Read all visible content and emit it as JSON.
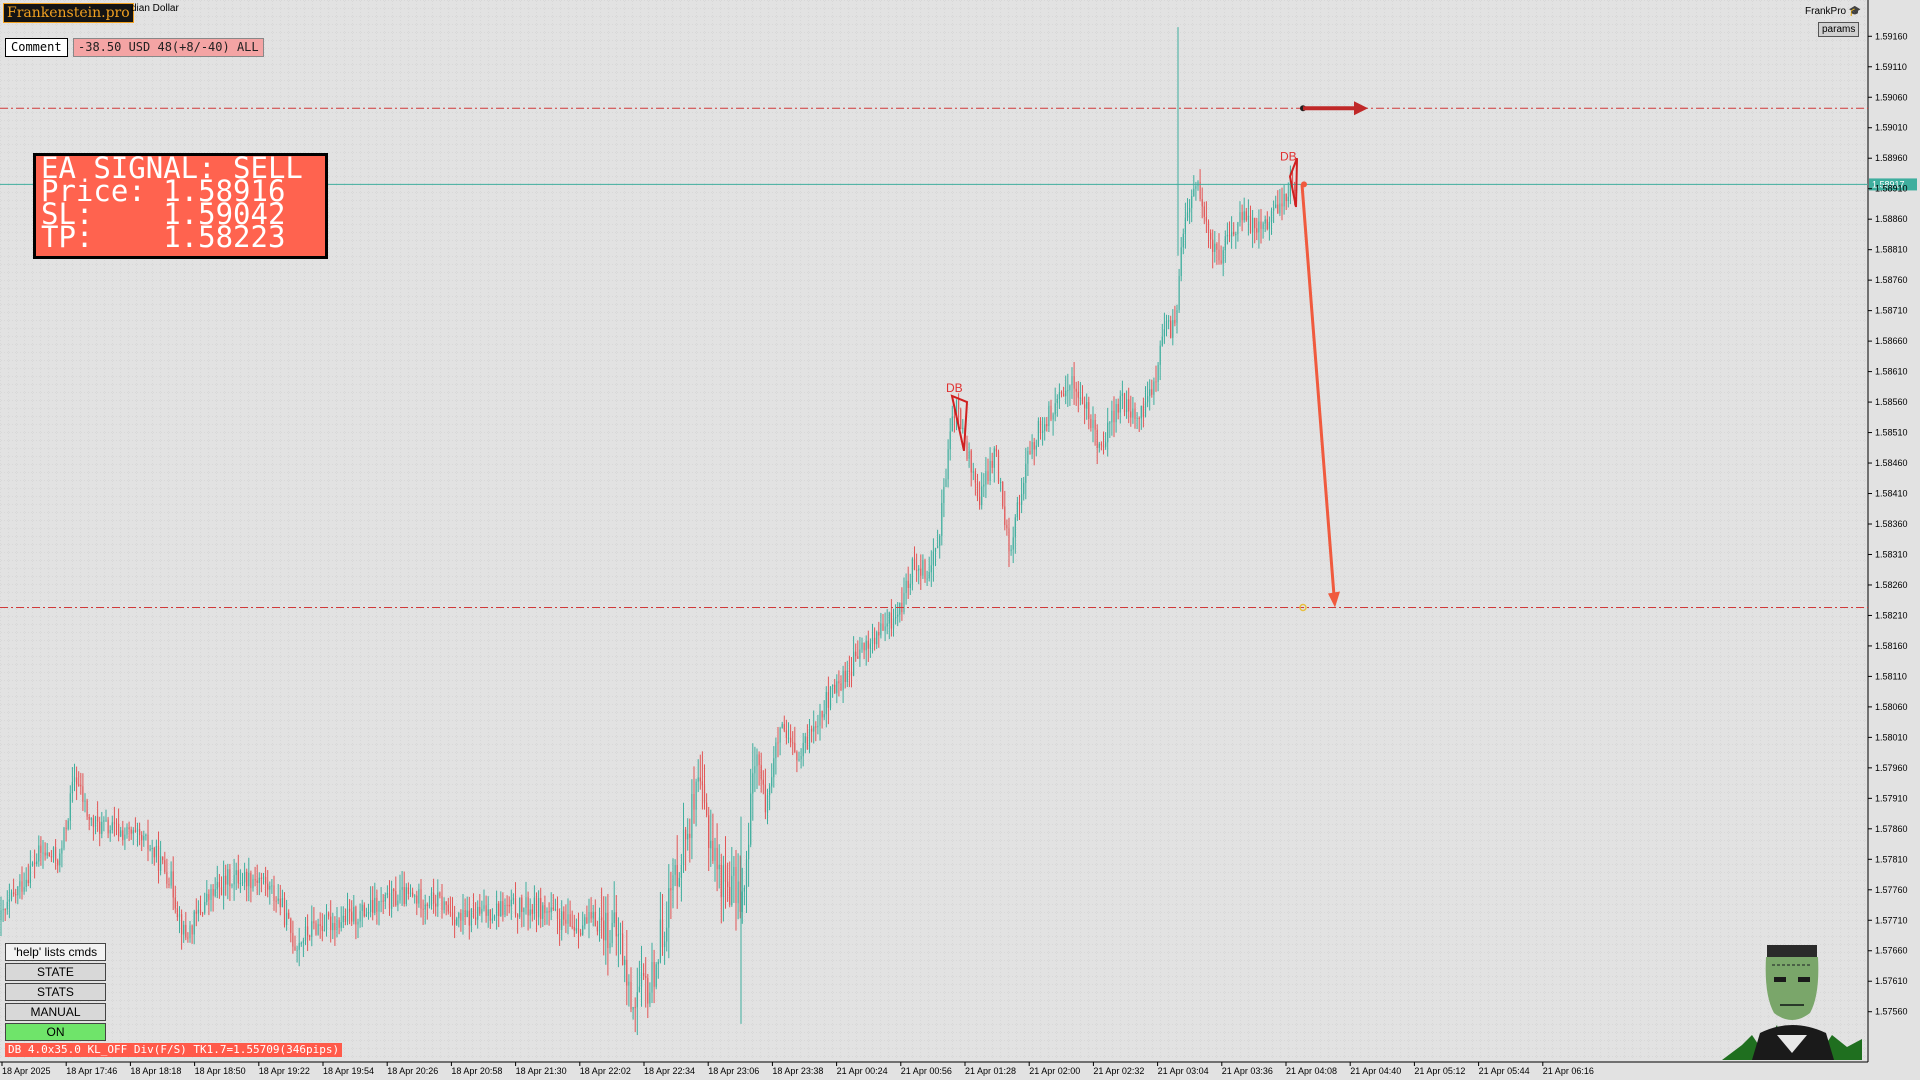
{
  "header": {
    "brand": "Frankenstein.pro",
    "symbol_fragment": "dian Dollar",
    "frankpro_label": "FrankPro",
    "params_button": "params"
  },
  "comment_panel": {
    "button_label": "Comment",
    "pnl_text": "-38.50 USD 48(+8/-40) ALL"
  },
  "signal_box": {
    "line1": "EA SIGNAL: SELL",
    "line2": "Price: 1.58916",
    "line3": "SL:    1.59042",
    "line4": "TP:    1.58223",
    "bg_color": "#ff634f"
  },
  "command_panel": {
    "help": "'help' lists cmds",
    "state": "STATE",
    "stats": "STATS",
    "manual": "MANUAL",
    "on": "ON",
    "on_color": "#6fe46a"
  },
  "status_bar": {
    "db_text": "DB 4.0x35.0 KL_OFF Div(F/S) TK1.7=1.55709(346pips)"
  },
  "chart_data": {
    "type": "candlestick",
    "ylim": [
      1.5753,
      1.5919
    ],
    "y_ticks": [
      "1.59160",
      "1.59110",
      "1.59060",
      "1.59010",
      "1.58960",
      "1.58910",
      "1.58860",
      "1.58810",
      "1.58760",
      "1.58710",
      "1.58660",
      "1.58610",
      "1.58560",
      "1.58510",
      "1.58460",
      "1.58410",
      "1.58360",
      "1.58310",
      "1.58260",
      "1.58210",
      "1.58160",
      "1.58110",
      "1.58060",
      "1.58010",
      "1.57960",
      "1.57910",
      "1.57860",
      "1.57810",
      "1.57760",
      "1.57710",
      "1.57660",
      "1.57610",
      "1.57560"
    ],
    "x_ticks": [
      "18 Apr 2025",
      "18 Apr 17:46",
      "18 Apr 18:18",
      "18 Apr 18:50",
      "18 Apr 19:22",
      "18 Apr 19:54",
      "18 Apr 20:26",
      "18 Apr 20:58",
      "18 Apr 21:30",
      "18 Apr 22:02",
      "18 Apr 22:34",
      "18 Apr 23:06",
      "18 Apr 23:38",
      "21 Apr 00:24",
      "21 Apr 00:56",
      "21 Apr 01:28",
      "21 Apr 02:00",
      "21 Apr 02:32",
      "21 Apr 03:04",
      "21 Apr 03:36",
      "21 Apr 04:08",
      "21 Apr 04:40",
      "21 Apr 05:12",
      "21 Apr 05:44",
      "21 Apr 06:16"
    ],
    "current_price": 1.58917,
    "current_price_label": "1.58917",
    "sl_level": 1.59042,
    "tp_level": 1.58223,
    "pattern_labels": [
      {
        "text": "DB",
        "x": 954,
        "price": 1.5857
      },
      {
        "text": "DB",
        "x": 1288,
        "price": 1.5895
      }
    ],
    "path": [
      [
        0,
        1.5771
      ],
      [
        40,
        1.5782
      ],
      [
        60,
        1.5781
      ],
      [
        75,
        1.5795
      ],
      [
        90,
        1.5787
      ],
      [
        130,
        1.5785
      ],
      [
        150,
        1.5783
      ],
      [
        170,
        1.5778
      ],
      [
        185,
        1.5768
      ],
      [
        205,
        1.5774
      ],
      [
        230,
        1.5778
      ],
      [
        260,
        1.5778
      ],
      [
        280,
        1.5774
      ],
      [
        295,
        1.5767
      ],
      [
        315,
        1.577
      ],
      [
        340,
        1.5771
      ],
      [
        360,
        1.5772
      ],
      [
        400,
        1.5775
      ],
      [
        440,
        1.5774
      ],
      [
        460,
        1.5771
      ],
      [
        500,
        1.5773
      ],
      [
        540,
        1.5773
      ],
      [
        570,
        1.577
      ],
      [
        600,
        1.5771
      ],
      [
        620,
        1.5768
      ],
      [
        630,
        1.5758
      ],
      [
        650,
        1.576
      ],
      [
        670,
        1.5775
      ],
      [
        690,
        1.5788
      ],
      [
        700,
        1.5792
      ],
      [
        720,
        1.5778
      ],
      [
        745,
        1.5775
      ],
      [
        755,
        1.58
      ],
      [
        765,
        1.579
      ],
      [
        780,
        1.5802
      ],
      [
        800,
        1.5797
      ],
      [
        815,
        1.5804
      ],
      [
        840,
        1.581
      ],
      [
        860,
        1.5815
      ],
      [
        880,
        1.5818
      ],
      [
        900,
        1.5822
      ],
      [
        915,
        1.583
      ],
      [
        930,
        1.5828
      ],
      [
        940,
        1.5836
      ],
      [
        955,
        1.5856
      ],
      [
        970,
        1.5846
      ],
      [
        980,
        1.584
      ],
      [
        995,
        1.5848
      ],
      [
        1010,
        1.5832
      ],
      [
        1025,
        1.5845
      ],
      [
        1040,
        1.5852
      ],
      [
        1060,
        1.5856
      ],
      [
        1070,
        1.586
      ],
      [
        1085,
        1.5855
      ],
      [
        1100,
        1.5849
      ],
      [
        1120,
        1.5856
      ],
      [
        1140,
        1.5853
      ],
      [
        1155,
        1.586
      ],
      [
        1165,
        1.5868
      ],
      [
        1175,
        1.5868
      ],
      [
        1180,
        1.588
      ],
      [
        1195,
        1.5893
      ],
      [
        1210,
        1.5882
      ],
      [
        1220,
        1.588
      ],
      [
        1240,
        1.5886
      ],
      [
        1260,
        1.5885
      ],
      [
        1280,
        1.5888
      ],
      [
        1290,
        1.5892
      ],
      [
        1300,
        1.5891
      ]
    ]
  }
}
